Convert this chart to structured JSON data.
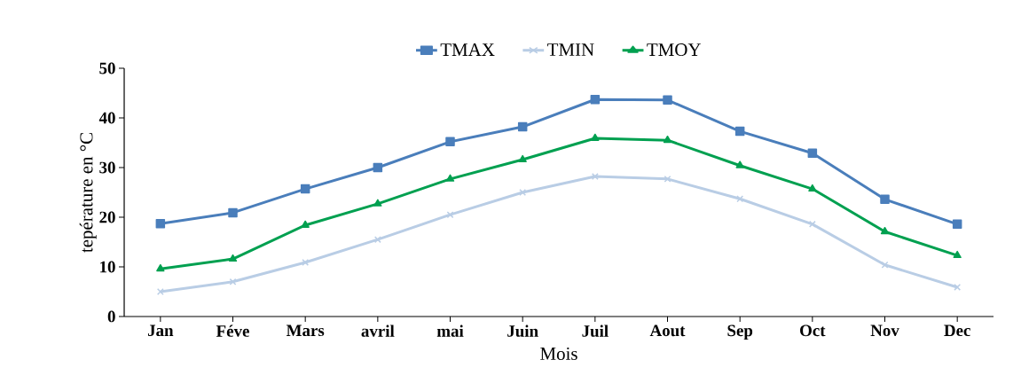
{
  "chart_data": {
    "type": "line",
    "xlabel": "Mois",
    "ylabel": "tepérature en °C",
    "categories": [
      "Jan",
      "Féve",
      "Mars",
      "avril",
      "mai",
      "Juin",
      "Juil",
      "Aout",
      "Sep",
      "Oct",
      "Nov",
      "Dec"
    ],
    "series": [
      {
        "name": "TMAX",
        "color": "#4a7ebb",
        "marker": "square",
        "values": [
          18.7,
          20.9,
          25.7,
          30,
          35.2,
          38.2,
          43.7,
          43.6,
          37.3,
          32.9,
          23.6,
          18.6
        ]
      },
      {
        "name": "TMIN",
        "color": "#b9cde5",
        "marker": "cross",
        "values": [
          5,
          7,
          10.9,
          15.5,
          20.5,
          25,
          28.2,
          27.7,
          23.7,
          18.6,
          10.4,
          5.9
        ]
      },
      {
        "name": "TMOY",
        "color": "#00a050",
        "marker": "triangle",
        "values": [
          9.6,
          11.6,
          18.4,
          22.7,
          27.7,
          31.6,
          35.9,
          35.5,
          30.4,
          25.7,
          17.1,
          12.3
        ]
      }
    ],
    "ylim": [
      0,
      50
    ],
    "yticks": [
      0,
      10,
      20,
      30,
      40,
      50
    ],
    "legend": "top",
    "grid": false,
    "line_style": "solid"
  }
}
